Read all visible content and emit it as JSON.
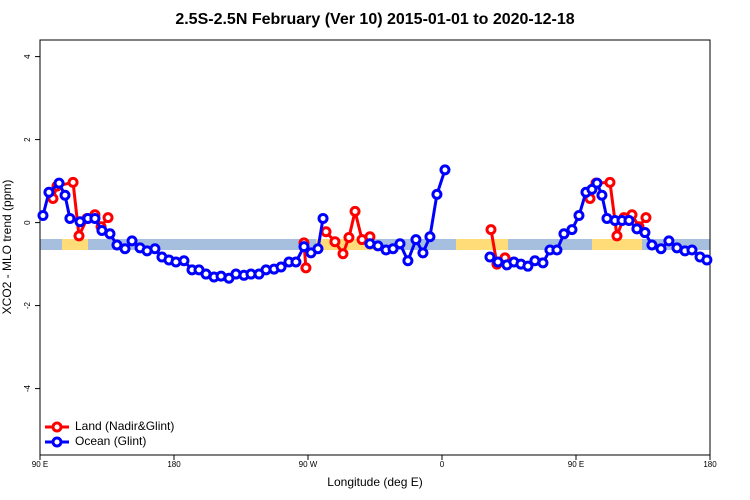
{
  "chart_data": {
    "type": "line",
    "title": "2.5S-2.5N February (Ver 10)   2015-01-01 to 2020-12-18",
    "x_label": "Longitude (deg E)",
    "y_label": "XCO2 - MLO trend (ppm)",
    "xlim": [
      90,
      540
    ],
    "xticks": [
      {
        "value": 90,
        "label": "90 E"
      },
      180,
      {
        "value": 270,
        "label": "90 W"
      },
      {
        "value": 360,
        "label": "0"
      },
      {
        "value": 450,
        "label": "90 E"
      },
      {
        "value": 540,
        "label": "180"
      }
    ],
    "ylim": [
      -5.6,
      4.4
    ],
    "yticks": [
      4,
      2,
      0,
      -2,
      -4
    ],
    "legend": "bottom-left",
    "series": [
      {
        "name": "Land (Nadir&Glint)",
        "color": "#ff0000",
        "x": [
          98.7,
          101.4,
          112.2,
          116.2,
          121.6,
          126.9,
          131.0,
          135.7,
          null,
          267.3,
          268.6,
          null,
          282.1,
          288.1,
          293.5,
          297.5,
          301.6,
          306.3,
          311.6,
          null,
          392.9,
          396.9,
          402.3,
          null,
          459.4,
          463.4,
          472.8,
          477.5,
          482.2,
          487.6,
          492.3,
          497.0
        ],
        "values": [
          0.58,
          0.88,
          0.97,
          -0.32,
          0.1,
          0.19,
          -0.1,
          0.12,
          null,
          -0.49,
          -1.09,
          null,
          -0.22,
          -0.46,
          -0.75,
          -0.36,
          0.27,
          -0.41,
          -0.34,
          null,
          -0.17,
          -1.0,
          -0.85,
          null,
          0.58,
          0.95,
          0.97,
          -0.32,
          0.12,
          0.19,
          -0.1,
          0.12
        ]
      },
      {
        "name": "Ocean (Glint)",
        "color": "#0000ff",
        "x": [
          92.0,
          96.0,
          102.8,
          106.8,
          110.1,
          116.9,
          122.2,
          126.9,
          131.6,
          137.0,
          141.7,
          147.1,
          151.8,
          157.2,
          161.9,
          167.2,
          171.9,
          176.6,
          181.3,
          186.7,
          192.1,
          196.8,
          201.5,
          206.9,
          211.6,
          216.9,
          221.6,
          227.0,
          231.7,
          237.1,
          241.8,
          247.2,
          251.9,
          257.2,
          261.9,
          267.3,
          272.0,
          276.7,
          280.1,
          null,
          311.6,
          317.0,
          322.4,
          327.1,
          331.8,
          337.1,
          342.5,
          347.2,
          351.9,
          356.6,
          362.0,
          null,
          392.2,
          397.6,
          403.6,
          408.3,
          413.0,
          417.7,
          422.4,
          427.8,
          432.5,
          437.2,
          441.9,
          447.3,
          452.0,
          456.7,
          460.7,
          464.1,
          467.4,
          470.8,
          476.2,
          480.9,
          485.6,
          490.9,
          496.3,
          501.0,
          507.1,
          512.4,
          517.8,
          523.2,
          527.9,
          533.3,
          537.9
        ],
        "values": [
          0.17,
          0.73,
          0.95,
          0.66,
          0.1,
          0.02,
          0.1,
          0.1,
          -0.19,
          -0.27,
          -0.54,
          -0.63,
          -0.44,
          -0.61,
          -0.68,
          -0.63,
          -0.83,
          -0.9,
          -0.95,
          -0.92,
          -1.14,
          -1.14,
          -1.24,
          -1.31,
          -1.29,
          -1.34,
          -1.24,
          -1.27,
          -1.24,
          -1.24,
          -1.14,
          -1.12,
          -1.07,
          -0.95,
          -0.95,
          -0.58,
          -0.73,
          -0.63,
          0.1,
          null,
          -0.51,
          -0.56,
          -0.66,
          -0.63,
          -0.51,
          -0.92,
          -0.41,
          -0.73,
          -0.34,
          0.68,
          1.27,
          null,
          -0.83,
          -0.95,
          -1.02,
          -0.95,
          -1.0,
          -1.05,
          -0.92,
          -0.97,
          -0.66,
          -0.66,
          -0.27,
          -0.17,
          0.17,
          0.73,
          0.8,
          0.95,
          0.66,
          0.1,
          0.05,
          0.05,
          0.05,
          -0.15,
          -0.24,
          -0.54,
          -0.63,
          -0.44,
          -0.61,
          -0.68,
          -0.66,
          -0.83,
          -0.9
        ]
      }
    ]
  }
}
